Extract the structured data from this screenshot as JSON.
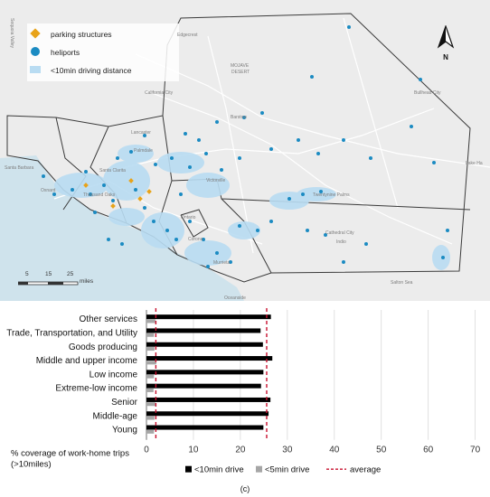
{
  "map": {
    "legend": [
      {
        "label": "parking structures",
        "icon": "diamond-icon",
        "color": "#e8a319"
      },
      {
        "label": "heliports",
        "icon": "circle-icon",
        "color": "#1b8bc2"
      },
      {
        "label": "<10min driving distance",
        "icon": "square-icon",
        "color": "#b9dcf2"
      }
    ],
    "north_label": "N",
    "scale": {
      "ticks": [
        "5",
        "15",
        "25"
      ],
      "unit": "miles"
    },
    "place_labels": [
      "Edgecrest",
      "MOJAVE",
      "DESERT",
      "California City",
      "Barstow",
      "Bullhead City",
      "Lancaster",
      "Palmdale",
      "Lake Ha",
      "Santa Barbara",
      "Oxnard",
      "Santa Clarita",
      "Thousand Oaks",
      "Twentynine Palms",
      "Victorville",
      "Ontario",
      "Corona",
      "Cathedral City",
      "Indio",
      "Murrieta",
      "Oceanside",
      "Salton Sea",
      "Sequoia Valley"
    ]
  },
  "chart_data": {
    "type": "bar",
    "orientation": "horizontal",
    "categories": [
      "Other services",
      "Trade, Transportation, and Utility",
      "Goods producing",
      "Middle and upper income",
      "Low income",
      "Extreme-low income",
      "Senior",
      "Middle-age",
      "Young"
    ],
    "series": [
      {
        "name": "<10min drive",
        "color": "#000000",
        "values": [
          26.5,
          24.3,
          24.8,
          26.8,
          24.9,
          24.4,
          26.4,
          26.0,
          24.9
        ]
      },
      {
        "name": "<5min drive",
        "color": "#a6a6a6",
        "values": [
          1.9,
          1.6,
          1.7,
          2.1,
          1.6,
          1.5,
          1.9,
          1.7,
          1.6
        ]
      }
    ],
    "average_lines": [
      {
        "name": "average",
        "values": [
          2,
          25.6
        ],
        "color": "#c8102e"
      }
    ],
    "xlabel": "% coverage of work-home trips (>10miles)",
    "xticks": [
      0,
      10,
      20,
      30,
      40,
      50,
      60,
      70
    ],
    "xlim": [
      0,
      72
    ],
    "grid": true,
    "legend_position": "bottom"
  },
  "caption": "(c)"
}
